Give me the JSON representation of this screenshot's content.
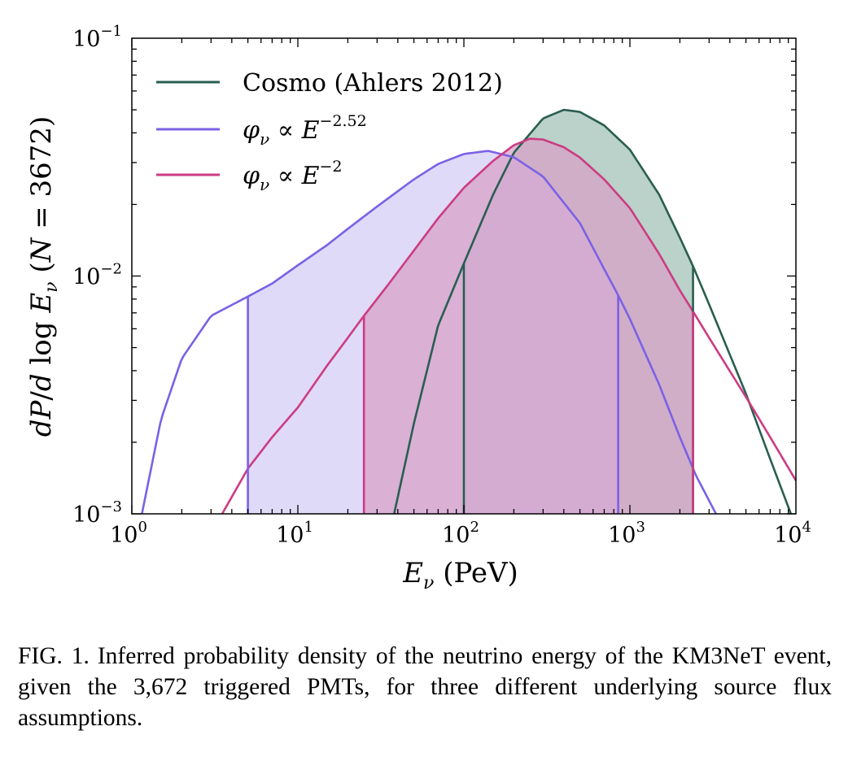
{
  "chart_data": {
    "type": "area",
    "xlabel": "E_ν (PeV)",
    "ylabel": "dP/d log E_ν  (N = 3672)",
    "xscale": "log",
    "yscale": "log",
    "xlim": [
      1,
      10000
    ],
    "ylim": [
      0.001,
      0.1
    ],
    "x_ticks": [
      {
        "base": "10",
        "exp": "0"
      },
      {
        "base": "10",
        "exp": "1"
      },
      {
        "base": "10",
        "exp": "2"
      },
      {
        "base": "10",
        "exp": "3"
      },
      {
        "base": "10",
        "exp": "4"
      }
    ],
    "y_ticks": [
      {
        "base": "10",
        "exp": "−3"
      },
      {
        "base": "10",
        "exp": "−2"
      },
      {
        "base": "10",
        "exp": "−1"
      }
    ],
    "legend_position": "upper-left",
    "grid": false,
    "series": [
      {
        "name": "Cosmo (Ahlers 2012)",
        "color": "#2a5e50",
        "fill": "#b6d0c6",
        "fill_range": [
          100,
          2400
        ],
        "points": [
          [
            38,
            0.001
          ],
          [
            50,
            0.0024
          ],
          [
            70,
            0.0062
          ],
          [
            100,
            0.0113
          ],
          [
            150,
            0.022
          ],
          [
            200,
            0.033
          ],
          [
            300,
            0.046
          ],
          [
            400,
            0.05
          ],
          [
            500,
            0.049
          ],
          [
            700,
            0.043
          ],
          [
            1000,
            0.034
          ],
          [
            1500,
            0.022
          ],
          [
            2000,
            0.0145
          ],
          [
            2400,
            0.011
          ],
          [
            3000,
            0.0076
          ],
          [
            5000,
            0.0032
          ],
          [
            7000,
            0.0017
          ],
          [
            10000,
            0.00088
          ]
        ]
      },
      {
        "name": "φ_ν ∝ E^{−2.52}",
        "color": "#7b61e6",
        "fill": "#d3ccf5",
        "fill_range": [
          5,
          850
        ],
        "points": [
          [
            1.15,
            0.001
          ],
          [
            1.5,
            0.0025
          ],
          [
            2,
            0.0045
          ],
          [
            3,
            0.0068
          ],
          [
            5,
            0.0082
          ],
          [
            7,
            0.0093
          ],
          [
            10,
            0.0111
          ],
          [
            15,
            0.0135
          ],
          [
            20,
            0.0158
          ],
          [
            30,
            0.0196
          ],
          [
            50,
            0.0255
          ],
          [
            70,
            0.0296
          ],
          [
            100,
            0.0326
          ],
          [
            140,
            0.0336
          ],
          [
            200,
            0.0316
          ],
          [
            300,
            0.0262
          ],
          [
            500,
            0.0167
          ],
          [
            700,
            0.0107
          ],
          [
            850,
            0.0083
          ],
          [
            1000,
            0.0066
          ],
          [
            1500,
            0.0035
          ],
          [
            2000,
            0.0021
          ],
          [
            2500,
            0.00145
          ],
          [
            3300,
            0.001
          ]
        ]
      },
      {
        "name": "φ_ν ∝ E^{−2}",
        "color": "#cc3c82",
        "fill": "#d8a0c8",
        "fill_range": [
          25,
          2400
        ],
        "points": [
          [
            3.5,
            0.001
          ],
          [
            5,
            0.00155
          ],
          [
            7,
            0.0021
          ],
          [
            10,
            0.0028
          ],
          [
            15,
            0.0042
          ],
          [
            20,
            0.0055
          ],
          [
            25,
            0.0068
          ],
          [
            35,
            0.0092
          ],
          [
            50,
            0.0128
          ],
          [
            70,
            0.0175
          ],
          [
            100,
            0.0235
          ],
          [
            150,
            0.0305
          ],
          [
            200,
            0.0355
          ],
          [
            250,
            0.0378
          ],
          [
            300,
            0.0375
          ],
          [
            400,
            0.0348
          ],
          [
            500,
            0.0315
          ],
          [
            700,
            0.0255
          ],
          [
            1000,
            0.0193
          ],
          [
            1500,
            0.0124
          ],
          [
            2000,
            0.0087
          ],
          [
            2400,
            0.0071
          ],
          [
            3000,
            0.0055
          ],
          [
            5000,
            0.0031
          ],
          [
            7000,
            0.0021
          ],
          [
            10000,
            0.00138
          ]
        ]
      }
    ]
  },
  "caption": {
    "label": "FIG. 1.",
    "text": "Inferred probability density of the neutrino energy of the KM3NeT event, given the 3,672 triggered PMTs, for three different underlying source flux assumptions."
  }
}
